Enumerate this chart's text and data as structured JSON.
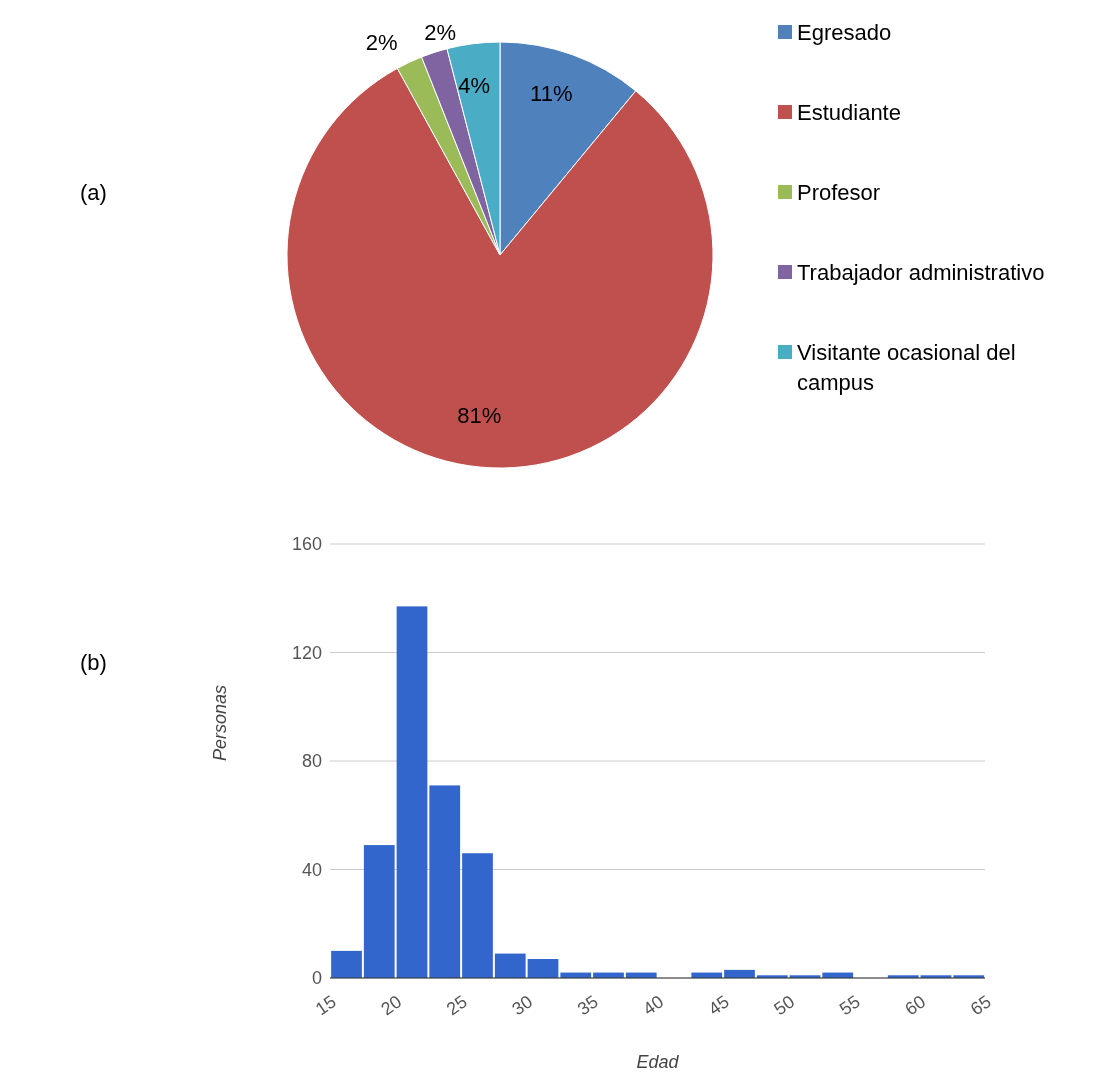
{
  "chart_data": [
    {
      "type": "pie",
      "categories": [
        "Egresado",
        "Estudiante",
        "Profesor",
        "Trabajador administrativo",
        "Visitante ocasional del campus"
      ],
      "values": [
        11,
        81,
        2,
        2,
        4
      ],
      "colors": [
        "#4f81bd",
        "#c0504d",
        "#9bbb59",
        "#8064a2",
        "#4bacc6"
      ],
      "value_labels": [
        "11%",
        "81%",
        "2%",
        "2%",
        "4%"
      ],
      "legend": "right",
      "annotations": [
        "(a)"
      ]
    },
    {
      "type": "histogram",
      "bins": [
        15,
        17.5,
        20,
        22.5,
        25,
        27.5,
        30,
        32.5,
        35,
        37.5,
        40,
        42.5,
        45,
        47.5,
        50,
        52.5,
        55,
        57.5,
        60,
        62.5,
        65
      ],
      "values": [
        10,
        49,
        137,
        71,
        46,
        9,
        7,
        2,
        2,
        2,
        0,
        2,
        3,
        1,
        1,
        2,
        0,
        1,
        1,
        1
      ],
      "color": "#3366cc",
      "xlim": [
        15,
        65
      ],
      "xticks": [
        15,
        20,
        25,
        30,
        35,
        40,
        45,
        50,
        55,
        60,
        65
      ],
      "ylim": [
        0,
        160
      ],
      "yticks": [
        0,
        40,
        80,
        120,
        160
      ],
      "grid": "y",
      "xlabel": "Edad",
      "ylabel": "Personas",
      "annotations": [
        "(b)"
      ]
    }
  ]
}
